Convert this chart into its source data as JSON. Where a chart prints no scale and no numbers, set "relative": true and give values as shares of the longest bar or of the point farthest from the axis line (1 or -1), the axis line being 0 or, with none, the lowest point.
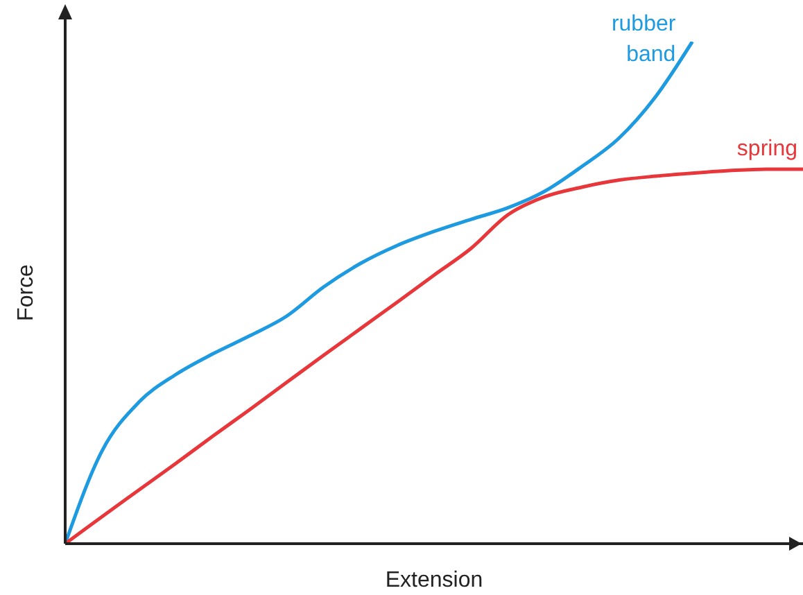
{
  "chart_data": {
    "type": "line",
    "relative": true,
    "xlabel": "Extension",
    "ylabel": "Force",
    "marker": "none",
    "categories": [
      null,
      null,
      null,
      null,
      null,
      null,
      null,
      null,
      null,
      null,
      null,
      null,
      null,
      null,
      null,
      null,
      null,
      null,
      null,
      null,
      null
    ],
    "series": [
      {
        "name": "rubber band",
        "color": "#1e9be0",
        "values": [
          0,
          0.185,
          0.282,
          0.337,
          0.378,
          0.414,
          0.453,
          0.511,
          0.558,
          0.594,
          0.622,
          0.646,
          0.669,
          0.702,
          0.751,
          0.807,
          0.89,
          1,
          null,
          null,
          null
        ]
      },
      {
        "name": "spring",
        "color": "#e8373a",
        "values": [
          0,
          0.054,
          0.107,
          0.16,
          0.214,
          0.267,
          0.321,
          0.375,
          0.428,
          0.481,
          0.535,
          0.588,
          0.655,
          0.691,
          0.71,
          0.724,
          0.732,
          0.738,
          0.743,
          0.746,
          0.746
        ]
      }
    ]
  }
}
